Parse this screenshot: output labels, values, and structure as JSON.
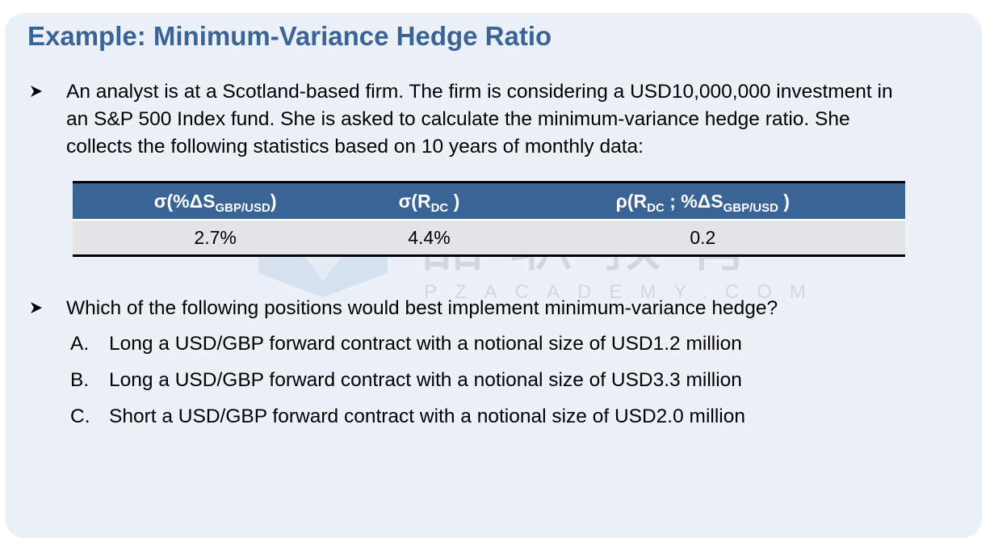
{
  "slide": {
    "title": "Example: Minimum-Variance Hedge Ratio",
    "intro_lines": [
      "An analyst is at a Scotland-based firm. The firm is considering a USD10,000,000 investment in",
      "an S&P 500 Index fund. She is asked to calculate the minimum-variance hedge ratio. She",
      "collects the following statistics based on 10 years of monthly data:"
    ],
    "bullet_icon": "arrow-bullet-icon",
    "table": {
      "headers": [
        {
          "main": "σ(%ΔS",
          "sub": "GBP/USD",
          "tail": ")"
        },
        {
          "main": "σ(R",
          "sub": "DC",
          "tail": " )"
        },
        {
          "main": "ρ(R",
          "sub": "DC",
          "mid": " ; %ΔS",
          "sub2": "GBP/USD",
          "tail": " )"
        }
      ],
      "values": [
        "2.7%",
        "4.4%",
        "0.2"
      ]
    },
    "question": "Which of the following positions would best implement minimum-variance hedge?",
    "options": [
      {
        "letter": "A.",
        "text": "Long a USD/GBP forward contract with a notional size of USD1.2 million"
      },
      {
        "letter": "B.",
        "text": "Long a USD/GBP forward contract with a notional size of USD3.3 million"
      },
      {
        "letter": "C.",
        "text": "Short a USD/GBP forward contract with a notional size of USD2.0 million"
      }
    ],
    "watermark": {
      "text": "品职教育",
      "subtext": "PZACADEMY.COM"
    },
    "colors": {
      "title": "#3a6396",
      "table_header": "#3a6396",
      "card_background": "#ecf0f7"
    }
  }
}
